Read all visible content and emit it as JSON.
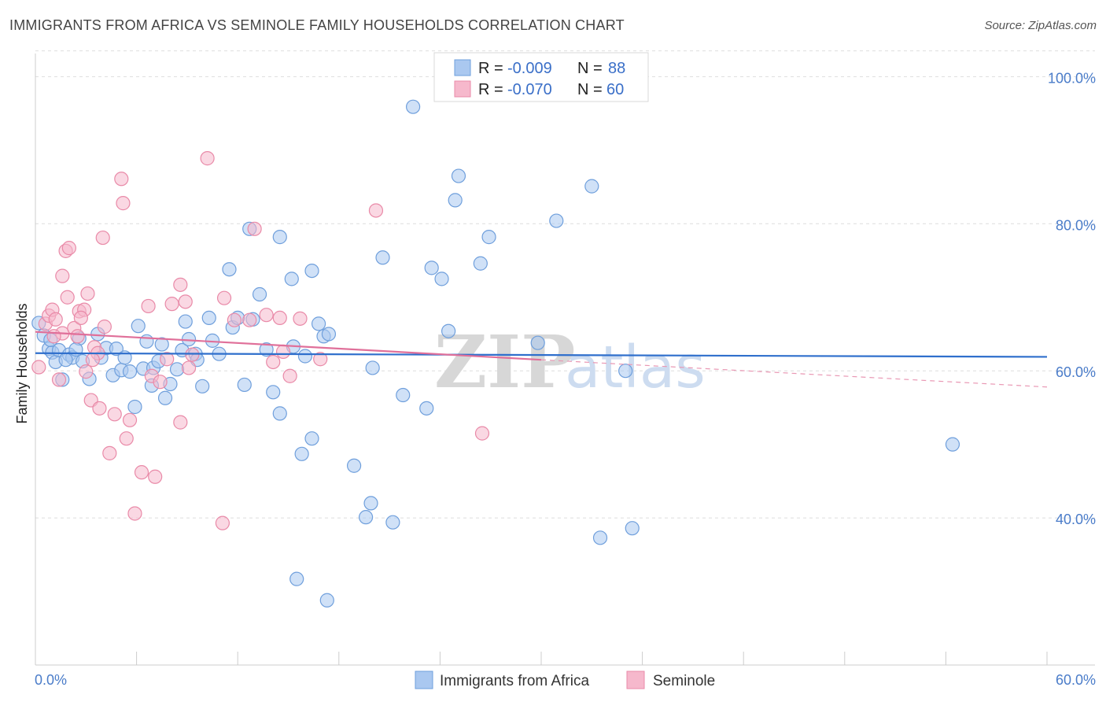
{
  "header": {
    "title": "IMMIGRANTS FROM AFRICA VS SEMINOLE FAMILY HOUSEHOLDS CORRELATION CHART",
    "source": "Source: ZipAtlas.com"
  },
  "watermark": {
    "zip": "ZIP",
    "atlas": "atlas"
  },
  "stats": [
    {
      "r_label": "R =",
      "r_value": "-0.009",
      "n_label": "N =",
      "n_value": "88",
      "color": "#aac8f0"
    },
    {
      "r_label": "R =",
      "r_value": "-0.070",
      "n_label": "N =",
      "n_value": "60",
      "color": "#f6b8cc"
    }
  ],
  "legend": [
    {
      "label": "Immigrants from Africa",
      "color": "#aac8f0"
    },
    {
      "label": "Seminole",
      "color": "#f6b8cc"
    }
  ],
  "chart_data": {
    "type": "scatter",
    "title": "IMMIGRANTS FROM AFRICA VS SEMINOLE FAMILY HOUSEHOLDS CORRELATION CHART",
    "xlabel": "",
    "ylabel": "Family Households",
    "xlim": [
      0,
      60
    ],
    "ylim": [
      20,
      104
    ],
    "x_tick_labels": [
      "0.0%",
      "60.0%"
    ],
    "y_ticks": [
      40,
      60,
      80,
      100
    ],
    "y_tick_labels": [
      "40.0%",
      "60.0%",
      "80.0%",
      "100.0%"
    ],
    "grid": true,
    "legend_position": "bottom-center",
    "series": [
      {
        "name": "Immigrants from Africa",
        "color": "#6f9fdc",
        "fill": "#aac8f0",
        "trend": {
          "x": [
            0,
            60
          ],
          "y": [
            62.4,
            61.9
          ]
        },
        "points": [
          [
            0.2,
            66.5
          ],
          [
            0.5,
            64.8
          ],
          [
            0.8,
            63.0
          ],
          [
            1.0,
            62.5
          ],
          [
            1.2,
            61.2
          ],
          [
            1.4,
            62.8
          ],
          [
            1.6,
            58.8
          ],
          [
            2.0,
            62.2
          ],
          [
            2.2,
            61.8
          ],
          [
            2.6,
            64.4
          ],
          [
            2.8,
            61.3
          ],
          [
            3.2,
            58.9
          ],
          [
            3.7,
            65.0
          ],
          [
            3.9,
            61.8
          ],
          [
            4.2,
            63.1
          ],
          [
            4.6,
            59.4
          ],
          [
            4.8,
            63.0
          ],
          [
            5.1,
            60.1
          ],
          [
            5.3,
            61.8
          ],
          [
            5.6,
            59.9
          ],
          [
            5.9,
            55.1
          ],
          [
            6.1,
            66.1
          ],
          [
            6.6,
            64.0
          ],
          [
            6.4,
            60.3
          ],
          [
            7.0,
            60.4
          ],
          [
            7.3,
            61.3
          ],
          [
            7.5,
            63.6
          ],
          [
            7.7,
            56.3
          ],
          [
            8.0,
            58.2
          ],
          [
            8.4,
            60.2
          ],
          [
            8.7,
            62.8
          ],
          [
            8.9,
            66.7
          ],
          [
            9.1,
            64.3
          ],
          [
            9.5,
            62.3
          ],
          [
            9.9,
            57.9
          ],
          [
            10.3,
            67.2
          ],
          [
            10.5,
            64.1
          ],
          [
            10.9,
            62.3
          ],
          [
            11.5,
            73.8
          ],
          [
            11.7,
            65.9
          ],
          [
            12.0,
            67.2
          ],
          [
            12.4,
            58.1
          ],
          [
            12.7,
            79.3
          ],
          [
            12.9,
            67.0
          ],
          [
            13.3,
            70.4
          ],
          [
            13.7,
            62.9
          ],
          [
            14.1,
            57.1
          ],
          [
            14.5,
            78.2
          ],
          [
            14.5,
            54.2
          ],
          [
            15.2,
            72.5
          ],
          [
            15.3,
            63.3
          ],
          [
            15.8,
            48.7
          ],
          [
            16.0,
            62.0
          ],
          [
            16.4,
            73.6
          ],
          [
            16.8,
            66.4
          ],
          [
            17.1,
            64.7
          ],
          [
            17.4,
            65.0
          ],
          [
            16.4,
            50.8
          ],
          [
            15.5,
            31.7
          ],
          [
            17.3,
            28.8
          ],
          [
            18.9,
            47.1
          ],
          [
            19.6,
            40.1
          ],
          [
            19.9,
            42.0
          ],
          [
            20.0,
            60.4
          ],
          [
            20.6,
            75.4
          ],
          [
            21.2,
            39.4
          ],
          [
            21.8,
            56.7
          ],
          [
            22.4,
            95.9
          ],
          [
            23.2,
            54.9
          ],
          [
            23.5,
            74.0
          ],
          [
            24.1,
            72.5
          ],
          [
            24.5,
            65.4
          ],
          [
            24.9,
            83.2
          ],
          [
            25.1,
            86.5
          ],
          [
            26.4,
            74.6
          ],
          [
            26.9,
            78.2
          ],
          [
            29.8,
            63.8
          ],
          [
            30.9,
            80.4
          ],
          [
            33.0,
            85.1
          ],
          [
            33.5,
            37.3
          ],
          [
            35.4,
            38.6
          ],
          [
            35.0,
            60.0
          ],
          [
            54.4,
            50.0
          ],
          [
            1.8,
            61.5
          ],
          [
            2.4,
            62.9
          ],
          [
            0.9,
            64.2
          ],
          [
            6.9,
            58.0
          ],
          [
            9.6,
            61.5
          ]
        ]
      },
      {
        "name": "Seminole",
        "color": "#e98aa8",
        "fill": "#f6b8cc",
        "trend": {
          "x": [
            0,
            30,
            60
          ],
          "y": [
            65.3,
            61.5,
            57.8
          ],
          "solid_until": 30
        },
        "points": [
          [
            0.2,
            60.5
          ],
          [
            0.6,
            66.4
          ],
          [
            0.8,
            67.5
          ],
          [
            1.0,
            68.3
          ],
          [
            1.2,
            67.0
          ],
          [
            1.4,
            58.8
          ],
          [
            1.6,
            65.1
          ],
          [
            1.6,
            72.9
          ],
          [
            1.8,
            76.3
          ],
          [
            1.9,
            70.0
          ],
          [
            2.0,
            76.7
          ],
          [
            2.3,
            65.8
          ],
          [
            2.5,
            64.7
          ],
          [
            2.6,
            68.1
          ],
          [
            2.9,
            68.3
          ],
          [
            3.0,
            59.9
          ],
          [
            3.1,
            70.5
          ],
          [
            3.3,
            56.0
          ],
          [
            3.5,
            63.2
          ],
          [
            3.7,
            62.4
          ],
          [
            3.8,
            54.9
          ],
          [
            4.0,
            78.1
          ],
          [
            4.1,
            66.0
          ],
          [
            4.4,
            48.8
          ],
          [
            4.7,
            54.1
          ],
          [
            5.1,
            86.1
          ],
          [
            5.2,
            82.8
          ],
          [
            5.4,
            50.8
          ],
          [
            5.6,
            53.3
          ],
          [
            5.9,
            40.6
          ],
          [
            6.3,
            46.2
          ],
          [
            6.7,
            68.8
          ],
          [
            6.9,
            59.3
          ],
          [
            7.1,
            45.6
          ],
          [
            7.4,
            58.5
          ],
          [
            7.8,
            61.6
          ],
          [
            8.1,
            69.1
          ],
          [
            8.6,
            53.0
          ],
          [
            8.6,
            71.7
          ],
          [
            8.9,
            69.4
          ],
          [
            9.1,
            60.4
          ],
          [
            10.2,
            88.9
          ],
          [
            11.1,
            39.3
          ],
          [
            11.2,
            69.9
          ],
          [
            11.8,
            66.9
          ],
          [
            12.7,
            66.9
          ],
          [
            13.0,
            79.3
          ],
          [
            13.7,
            67.6
          ],
          [
            14.1,
            61.2
          ],
          [
            14.7,
            62.6
          ],
          [
            15.1,
            59.3
          ],
          [
            14.5,
            67.2
          ],
          [
            15.7,
            67.1
          ],
          [
            16.9,
            61.6
          ],
          [
            20.2,
            81.8
          ],
          [
            26.5,
            51.5
          ],
          [
            1.1,
            64.7
          ],
          [
            3.4,
            61.5
          ],
          [
            2.7,
            67.2
          ],
          [
            9.3,
            62.2
          ]
        ]
      }
    ]
  }
}
